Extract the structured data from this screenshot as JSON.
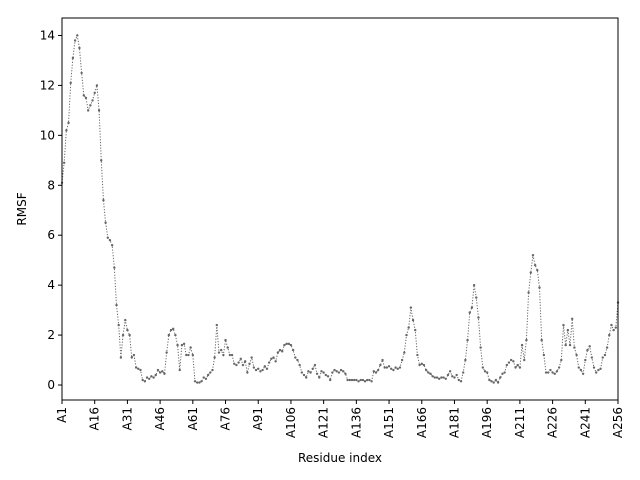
{
  "chart_data": {
    "type": "line",
    "xlabel": "Residue index",
    "ylabel": "RMSF",
    "x": [
      1,
      2,
      3,
      4,
      5,
      6,
      7,
      8,
      9,
      10,
      11,
      12,
      13,
      14,
      15,
      16,
      17,
      18,
      19,
      20,
      21,
      22,
      23,
      24,
      25,
      26,
      27,
      28,
      29,
      30,
      31,
      32,
      33,
      34,
      35,
      36,
      37,
      38,
      39,
      40,
      41,
      42,
      43,
      44,
      45,
      46,
      47,
      48,
      49,
      50,
      51,
      52,
      53,
      54,
      55,
      56,
      57,
      58,
      59,
      60,
      61,
      62,
      63,
      64,
      65,
      66,
      67,
      68,
      69,
      70,
      71,
      72,
      73,
      74,
      75,
      76,
      77,
      78,
      79,
      80,
      81,
      82,
      83,
      84,
      85,
      86,
      87,
      88,
      89,
      90,
      91,
      92,
      93,
      94,
      95,
      96,
      97,
      98,
      99,
      100,
      101,
      102,
      103,
      104,
      105,
      106,
      107,
      108,
      109,
      110,
      111,
      112,
      113,
      114,
      115,
      116,
      117,
      118,
      119,
      120,
      121,
      122,
      123,
      124,
      125,
      126,
      127,
      128,
      129,
      130,
      131,
      132,
      133,
      134,
      135,
      136,
      137,
      138,
      139,
      140,
      141,
      142,
      143,
      144,
      145,
      146,
      147,
      148,
      149,
      150,
      151,
      152,
      153,
      154,
      155,
      156,
      157,
      158,
      159,
      160,
      161,
      162,
      163,
      164,
      165,
      166,
      167,
      168,
      169,
      170,
      171,
      172,
      173,
      174,
      175,
      176,
      177,
      178,
      179,
      180,
      181,
      182,
      183,
      184,
      185,
      186,
      187,
      188,
      189,
      190,
      191,
      192,
      193,
      194,
      195,
      196,
      197,
      198,
      199,
      200,
      201,
      202,
      203,
      204,
      205,
      206,
      207,
      208,
      209,
      210,
      211,
      212,
      213,
      214,
      215,
      216,
      217,
      218,
      219,
      220,
      221,
      222,
      223,
      224,
      225,
      226,
      227,
      228,
      229,
      230,
      231,
      232,
      233,
      234,
      235,
      236,
      237,
      238,
      239,
      240,
      241,
      242,
      243,
      244,
      245,
      246,
      247,
      248,
      249,
      250,
      251,
      252,
      253,
      254,
      255,
      256
    ],
    "series": [
      {
        "color": "#666666",
        "values": [
          8.1,
          8.9,
          10.2,
          10.5,
          12.1,
          13.1,
          13.8,
          14.0,
          13.5,
          12.5,
          11.6,
          11.5,
          11.0,
          11.2,
          11.4,
          11.7,
          12.0,
          11.0,
          9.0,
          7.4,
          6.5,
          5.9,
          5.8,
          5.6,
          4.7,
          3.2,
          2.4,
          1.1,
          2.0,
          2.6,
          2.2,
          2.0,
          1.1,
          1.2,
          0.7,
          0.65,
          0.6,
          0.2,
          0.15,
          0.3,
          0.25,
          0.35,
          0.3,
          0.4,
          0.6,
          0.5,
          0.55,
          0.45,
          1.3,
          2.0,
          2.2,
          2.25,
          2.0,
          1.6,
          0.6,
          1.6,
          1.65,
          1.2,
          1.2,
          1.5,
          1.2,
          0.15,
          0.1,
          0.1,
          0.15,
          0.3,
          0.25,
          0.4,
          0.5,
          0.6,
          1.1,
          2.4,
          1.3,
          1.4,
          1.2,
          1.8,
          1.5,
          1.2,
          1.2,
          0.85,
          0.8,
          0.9,
          1.05,
          0.8,
          0.95,
          0.5,
          0.85,
          1.1,
          0.7,
          0.6,
          0.65,
          0.55,
          0.6,
          0.75,
          0.65,
          0.9,
          1.05,
          1.1,
          0.95,
          1.3,
          1.4,
          1.35,
          1.6,
          1.65,
          1.65,
          1.6,
          1.4,
          1.1,
          1.0,
          0.8,
          0.5,
          0.4,
          0.3,
          0.55,
          0.5,
          0.65,
          0.8,
          0.45,
          0.3,
          0.55,
          0.5,
          0.4,
          0.35,
          0.2,
          0.5,
          0.6,
          0.55,
          0.5,
          0.6,
          0.55,
          0.45,
          0.2,
          0.2,
          0.2,
          0.2,
          0.2,
          0.15,
          0.2,
          0.2,
          0.15,
          0.2,
          0.2,
          0.15,
          0.55,
          0.5,
          0.6,
          0.8,
          1.0,
          0.7,
          0.7,
          0.75,
          0.65,
          0.6,
          0.7,
          0.65,
          0.7,
          1.0,
          1.3,
          2.0,
          2.3,
          3.1,
          2.6,
          2.2,
          1.2,
          0.8,
          0.85,
          0.8,
          0.6,
          0.5,
          0.45,
          0.35,
          0.3,
          0.3,
          0.25,
          0.3,
          0.3,
          0.25,
          0.4,
          0.55,
          0.35,
          0.3,
          0.4,
          0.2,
          0.15,
          0.5,
          1.0,
          1.8,
          2.9,
          3.1,
          4.0,
          3.5,
          2.7,
          1.5,
          0.7,
          0.55,
          0.5,
          0.2,
          0.15,
          0.1,
          0.2,
          0.1,
          0.3,
          0.45,
          0.5,
          0.8,
          0.9,
          1.0,
          0.95,
          0.7,
          0.8,
          0.7,
          1.6,
          1.0,
          1.8,
          3.7,
          4.5,
          5.2,
          4.8,
          4.6,
          3.9,
          1.8,
          1.2,
          0.5,
          0.5,
          0.6,
          0.5,
          0.45,
          0.55,
          0.7,
          1.0,
          2.4,
          1.6,
          2.2,
          1.6,
          2.65,
          1.5,
          1.2,
          0.7,
          0.6,
          0.45,
          1.0,
          1.4,
          1.55,
          1.1,
          0.7,
          0.5,
          0.6,
          0.65,
          1.1,
          1.2,
          1.5,
          2.0,
          2.4,
          2.2,
          2.3,
          3.3
        ]
      }
    ],
    "xlim": [
      1,
      256
    ],
    "ylim": [
      -0.6,
      14.7
    ],
    "xticks": [
      {
        "value": 1,
        "label": "A1"
      },
      {
        "value": 16,
        "label": "A16"
      },
      {
        "value": 31,
        "label": "A31"
      },
      {
        "value": 46,
        "label": "A46"
      },
      {
        "value": 61,
        "label": "A61"
      },
      {
        "value": 76,
        "label": "A76"
      },
      {
        "value": 91,
        "label": "A91"
      },
      {
        "value": 106,
        "label": "A106"
      },
      {
        "value": 121,
        "label": "A121"
      },
      {
        "value": 136,
        "label": "A136"
      },
      {
        "value": 151,
        "label": "A151"
      },
      {
        "value": 166,
        "label": "A166"
      },
      {
        "value": 181,
        "label": "A181"
      },
      {
        "value": 196,
        "label": "A196"
      },
      {
        "value": 211,
        "label": "A211"
      },
      {
        "value": 226,
        "label": "A226"
      },
      {
        "value": 241,
        "label": "A241"
      },
      {
        "value": 256,
        "label": "A256"
      }
    ],
    "yticks": [
      0,
      2,
      4,
      6,
      8,
      10,
      12,
      14
    ],
    "grid": false
  }
}
